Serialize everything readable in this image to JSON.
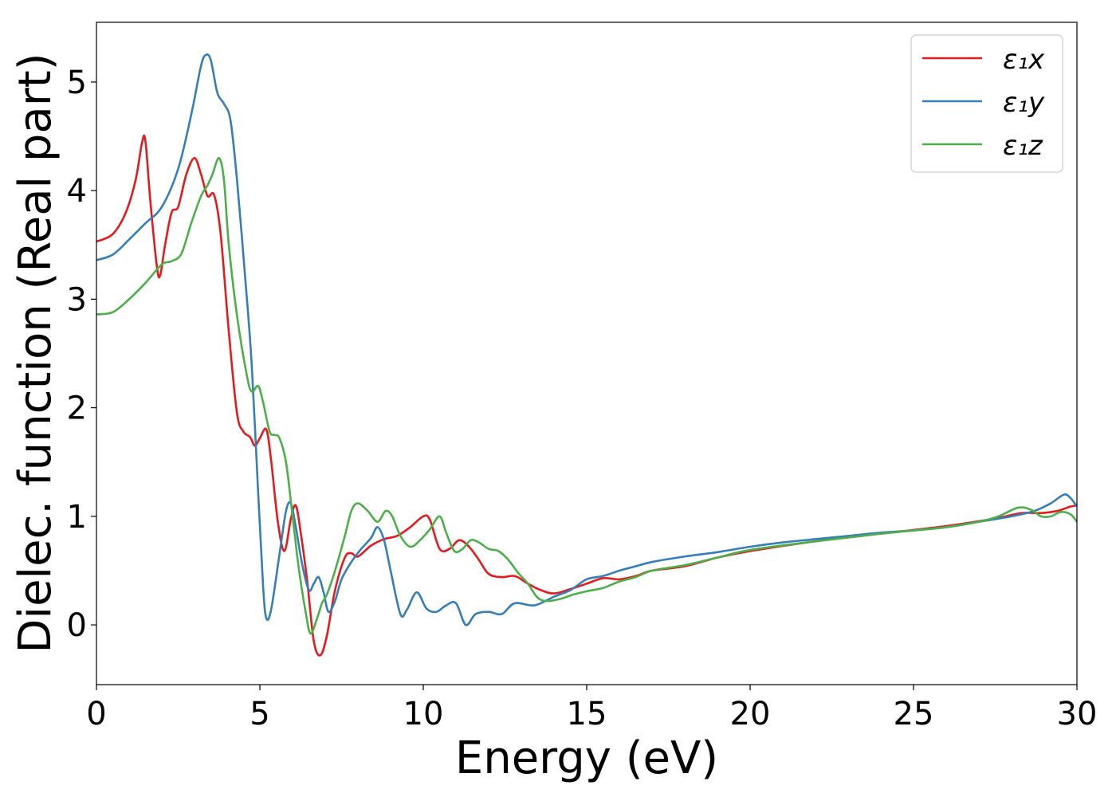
{
  "chart_data": {
    "type": "line",
    "title": "",
    "xlabel": "Energy (eV)",
    "ylabel": "Dielec. function (Real part)",
    "xlim": [
      0,
      30
    ],
    "ylim": [
      -0.55,
      5.55
    ],
    "xticks": [
      "0",
      "5",
      "10",
      "15",
      "20",
      "25",
      "30"
    ],
    "yticks": [
      "0",
      "1",
      "2",
      "3",
      "4",
      "5"
    ],
    "grid": false,
    "legend_position": "top-right",
    "series": [
      {
        "name": "ε₁x",
        "color": "#e41a1c",
        "points": [
          [
            0,
            3.53
          ],
          [
            0.5,
            3.6
          ],
          [
            0.9,
            3.8
          ],
          [
            1.2,
            4.1
          ],
          [
            1.4,
            4.45
          ],
          [
            1.5,
            4.45
          ],
          [
            1.65,
            3.9
          ],
          [
            1.85,
            3.3
          ],
          [
            1.95,
            3.22
          ],
          [
            2.1,
            3.5
          ],
          [
            2.3,
            3.8
          ],
          [
            2.5,
            3.85
          ],
          [
            2.75,
            4.15
          ],
          [
            3.0,
            4.3
          ],
          [
            3.2,
            4.15
          ],
          [
            3.4,
            3.95
          ],
          [
            3.6,
            3.96
          ],
          [
            3.8,
            3.6
          ],
          [
            4.05,
            2.7
          ],
          [
            4.3,
            1.95
          ],
          [
            4.5,
            1.78
          ],
          [
            4.7,
            1.73
          ],
          [
            4.85,
            1.65
          ],
          [
            5.0,
            1.72
          ],
          [
            5.2,
            1.8
          ],
          [
            5.35,
            1.5
          ],
          [
            5.55,
            0.95
          ],
          [
            5.75,
            0.68
          ],
          [
            5.95,
            0.98
          ],
          [
            6.1,
            1.1
          ],
          [
            6.25,
            0.85
          ],
          [
            6.45,
            0.4
          ],
          [
            6.65,
            -0.15
          ],
          [
            6.85,
            -0.28
          ],
          [
            7.05,
            -0.1
          ],
          [
            7.3,
            0.32
          ],
          [
            7.6,
            0.62
          ],
          [
            7.8,
            0.66
          ],
          [
            8.0,
            0.63
          ],
          [
            8.4,
            0.73
          ],
          [
            8.8,
            0.79
          ],
          [
            9.2,
            0.82
          ],
          [
            9.6,
            0.9
          ],
          [
            10.0,
            1.0
          ],
          [
            10.2,
            0.97
          ],
          [
            10.5,
            0.7
          ],
          [
            10.8,
            0.7
          ],
          [
            11.1,
            0.78
          ],
          [
            11.4,
            0.72
          ],
          [
            11.7,
            0.6
          ],
          [
            12.0,
            0.47
          ],
          [
            12.4,
            0.44
          ],
          [
            12.8,
            0.45
          ],
          [
            13.2,
            0.38
          ],
          [
            13.6,
            0.32
          ],
          [
            14.0,
            0.29
          ],
          [
            14.5,
            0.33
          ],
          [
            15.0,
            0.38
          ],
          [
            15.5,
            0.43
          ],
          [
            16.0,
            0.42
          ],
          [
            16.5,
            0.45
          ],
          [
            17.0,
            0.5
          ],
          [
            18.0,
            0.54
          ],
          [
            19.0,
            0.62
          ],
          [
            20.0,
            0.68
          ],
          [
            22.0,
            0.77
          ],
          [
            24.0,
            0.84
          ],
          [
            26.0,
            0.91
          ],
          [
            27.5,
            0.98
          ],
          [
            28.3,
            1.03
          ],
          [
            28.9,
            1.03
          ],
          [
            29.4,
            1.05
          ],
          [
            29.8,
            1.09
          ],
          [
            30.0,
            1.1
          ]
        ]
      },
      {
        "name": "ε₁y",
        "color": "#377eb8",
        "points": [
          [
            0,
            3.36
          ],
          [
            0.5,
            3.41
          ],
          [
            1.0,
            3.55
          ],
          [
            1.5,
            3.7
          ],
          [
            2.0,
            3.85
          ],
          [
            2.5,
            4.2
          ],
          [
            2.9,
            4.7
          ],
          [
            3.2,
            5.15
          ],
          [
            3.35,
            5.25
          ],
          [
            3.5,
            5.2
          ],
          [
            3.7,
            4.9
          ],
          [
            3.9,
            4.8
          ],
          [
            4.1,
            4.65
          ],
          [
            4.3,
            4.1
          ],
          [
            4.55,
            3.2
          ],
          [
            4.75,
            2.4
          ],
          [
            4.95,
            1.2
          ],
          [
            5.1,
            0.35
          ],
          [
            5.2,
            0.06
          ],
          [
            5.35,
            0.15
          ],
          [
            5.6,
            0.65
          ],
          [
            5.8,
            1.05
          ],
          [
            5.95,
            1.12
          ],
          [
            6.1,
            0.9
          ],
          [
            6.3,
            0.55
          ],
          [
            6.5,
            0.32
          ],
          [
            6.65,
            0.38
          ],
          [
            6.8,
            0.44
          ],
          [
            6.95,
            0.3
          ],
          [
            7.1,
            0.12
          ],
          [
            7.3,
            0.22
          ],
          [
            7.5,
            0.42
          ],
          [
            7.8,
            0.58
          ],
          [
            8.1,
            0.7
          ],
          [
            8.4,
            0.8
          ],
          [
            8.6,
            0.9
          ],
          [
            8.8,
            0.78
          ],
          [
            9.0,
            0.5
          ],
          [
            9.3,
            0.1
          ],
          [
            9.5,
            0.14
          ],
          [
            9.8,
            0.3
          ],
          [
            10.1,
            0.15
          ],
          [
            10.4,
            0.12
          ],
          [
            10.7,
            0.18
          ],
          [
            11.0,
            0.2
          ],
          [
            11.3,
            0.0
          ],
          [
            11.6,
            0.1
          ],
          [
            12.0,
            0.12
          ],
          [
            12.4,
            0.1
          ],
          [
            12.8,
            0.2
          ],
          [
            13.4,
            0.18
          ],
          [
            14.0,
            0.26
          ],
          [
            14.5,
            0.32
          ],
          [
            15.0,
            0.42
          ],
          [
            15.5,
            0.45
          ],
          [
            16.0,
            0.5
          ],
          [
            16.5,
            0.54
          ],
          [
            17.0,
            0.58
          ],
          [
            18.0,
            0.63
          ],
          [
            19.0,
            0.67
          ],
          [
            20.0,
            0.72
          ],
          [
            21.0,
            0.76
          ],
          [
            22.0,
            0.79
          ],
          [
            23.0,
            0.82
          ],
          [
            24.0,
            0.85
          ],
          [
            25.0,
            0.87
          ],
          [
            26.0,
            0.9
          ],
          [
            27.0,
            0.95
          ],
          [
            28.0,
            1.0
          ],
          [
            28.7,
            1.05
          ],
          [
            29.2,
            1.12
          ],
          [
            29.6,
            1.2
          ],
          [
            29.8,
            1.17
          ],
          [
            30.0,
            1.09
          ]
        ]
      },
      {
        "name": "ε₁z",
        "color": "#4daf4a",
        "points": [
          [
            0,
            2.86
          ],
          [
            0.5,
            2.88
          ],
          [
            1.0,
            3.0
          ],
          [
            1.5,
            3.15
          ],
          [
            2.0,
            3.32
          ],
          [
            2.3,
            3.35
          ],
          [
            2.6,
            3.42
          ],
          [
            2.9,
            3.7
          ],
          [
            3.2,
            3.95
          ],
          [
            3.4,
            4.05
          ],
          [
            3.55,
            4.15
          ],
          [
            3.75,
            4.3
          ],
          [
            3.9,
            4.1
          ],
          [
            4.05,
            3.5
          ],
          [
            4.3,
            2.85
          ],
          [
            4.6,
            2.3
          ],
          [
            4.75,
            2.15
          ],
          [
            4.95,
            2.2
          ],
          [
            5.1,
            2.05
          ],
          [
            5.3,
            1.78
          ],
          [
            5.45,
            1.75
          ],
          [
            5.6,
            1.72
          ],
          [
            5.8,
            1.5
          ],
          [
            6.0,
            1.0
          ],
          [
            6.2,
            0.5
          ],
          [
            6.4,
            0.12
          ],
          [
            6.55,
            -0.08
          ],
          [
            6.75,
            0.06
          ],
          [
            6.9,
            0.2
          ],
          [
            7.05,
            0.28
          ],
          [
            7.3,
            0.5
          ],
          [
            7.6,
            0.82
          ],
          [
            7.8,
            1.05
          ],
          [
            8.0,
            1.12
          ],
          [
            8.3,
            1.05
          ],
          [
            8.6,
            0.95
          ],
          [
            8.85,
            1.05
          ],
          [
            9.05,
            1.0
          ],
          [
            9.3,
            0.82
          ],
          [
            9.6,
            0.72
          ],
          [
            9.9,
            0.78
          ],
          [
            10.2,
            0.88
          ],
          [
            10.5,
            1.0
          ],
          [
            10.7,
            0.85
          ],
          [
            10.95,
            0.68
          ],
          [
            11.2,
            0.7
          ],
          [
            11.45,
            0.78
          ],
          [
            11.7,
            0.76
          ],
          [
            12.0,
            0.7
          ],
          [
            12.3,
            0.68
          ],
          [
            12.6,
            0.6
          ],
          [
            12.9,
            0.48
          ],
          [
            13.2,
            0.38
          ],
          [
            13.5,
            0.25
          ],
          [
            13.8,
            0.22
          ],
          [
            14.2,
            0.24
          ],
          [
            14.6,
            0.28
          ],
          [
            15.0,
            0.31
          ],
          [
            15.5,
            0.34
          ],
          [
            16.0,
            0.4
          ],
          [
            16.5,
            0.44
          ],
          [
            17.0,
            0.5
          ],
          [
            18.0,
            0.55
          ],
          [
            19.0,
            0.62
          ],
          [
            20.0,
            0.69
          ],
          [
            22.0,
            0.77
          ],
          [
            24.0,
            0.84
          ],
          [
            26.0,
            0.9
          ],
          [
            27.0,
            0.95
          ],
          [
            27.6,
            1.0
          ],
          [
            28.2,
            1.08
          ],
          [
            28.6,
            1.06
          ],
          [
            28.9,
            1.0
          ],
          [
            29.2,
            1.0
          ],
          [
            29.5,
            1.04
          ],
          [
            29.8,
            1.02
          ],
          [
            30.0,
            0.95
          ]
        ]
      }
    ]
  }
}
